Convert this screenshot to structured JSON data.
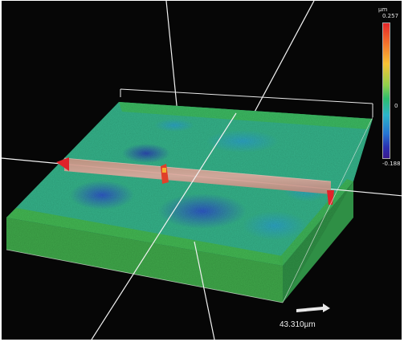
{
  "colorbar": {
    "unit": "µm",
    "max_label": "0.257",
    "mid_label": "0",
    "min_label": "-0.188",
    "colors": [
      "#e3262a",
      "#f36d2b",
      "#f8c234",
      "#8fd04b",
      "#2dbd6e",
      "#2bb4c9",
      "#2574d2",
      "#2a2fb0",
      "#3b1a8f"
    ]
  },
  "scale": {
    "label": "43.310µm",
    "arrow_icon": "right-arrow-icon"
  },
  "colors": {
    "background": "#060606",
    "surface_main": "#33b388",
    "surface_edge": "#4bb748",
    "profile_band": "#d49a90",
    "axis_line": "#f2f2f2",
    "marker_red": "#e0232a"
  }
}
